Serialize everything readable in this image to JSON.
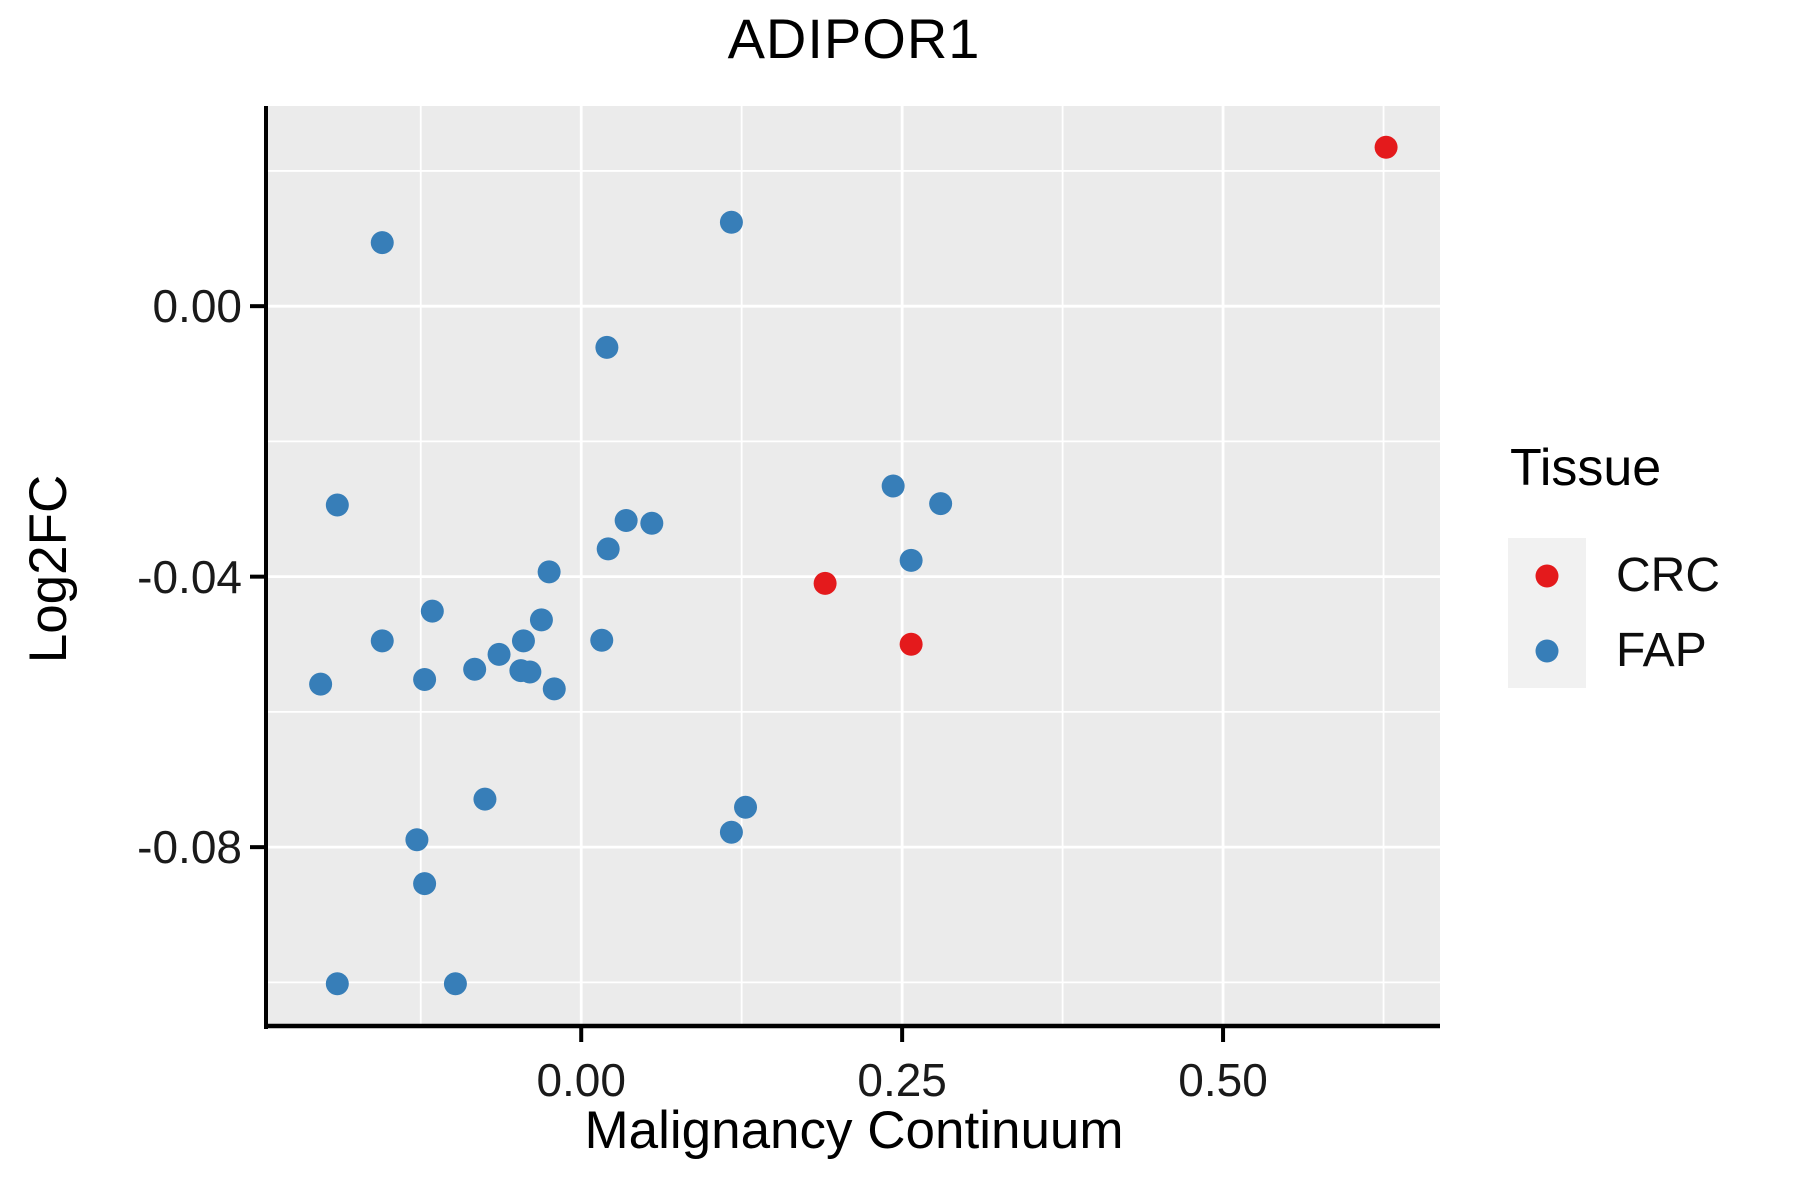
{
  "chart": {
    "title": "ADIPOR1",
    "xlabel": "Malignancy Continuum",
    "ylabel": "Log2FC",
    "legend_title": "Tissue"
  },
  "style": {
    "panel_bg": "#EBEBEB",
    "grid_color": "#FFFFFF",
    "axis_color": "#000000",
    "tick_text_color": "#1a1a1a",
    "legend_key_bg": "#F1F1F1",
    "crc_color": "#E41A1C",
    "fap_color": "#377EB8"
  },
  "chart_data": {
    "type": "scatter",
    "title": "ADIPOR1",
    "xlabel": "Malignancy Continuum",
    "ylabel": "Log2FC",
    "legend_title": "Tissue",
    "legend_position": "right",
    "grid": true,
    "x_range": [
      -0.244,
      0.669
    ],
    "y_range": [
      -0.1063,
      0.0296
    ],
    "x_major_ticks": [
      0.0,
      0.25,
      0.5
    ],
    "x_tick_labels": [
      "0.00",
      "0.25",
      "0.50"
    ],
    "x_minor_ticks": [
      -0.125,
      0.125,
      0.375,
      0.625
    ],
    "y_major_ticks": [
      0.0,
      -0.04,
      -0.08
    ],
    "y_tick_labels": [
      "0.00",
      "-0.04",
      "-0.08"
    ],
    "y_minor_ticks": [
      0.02,
      -0.02,
      -0.06,
      -0.1
    ],
    "point_radius": 11.5,
    "series": [
      {
        "name": "FAP",
        "color": "#377EB8",
        "points": [
          [
            -0.155,
            0.0094
          ],
          [
            0.117,
            0.0124
          ],
          [
            0.02,
            -0.0061
          ],
          [
            -0.19,
            -0.0294
          ],
          [
            0.035,
            -0.0317
          ],
          [
            0.055,
            -0.0321
          ],
          [
            0.021,
            -0.0359
          ],
          [
            -0.025,
            -0.0393
          ],
          [
            -0.116,
            -0.0451
          ],
          [
            -0.031,
            -0.0464
          ],
          [
            -0.155,
            -0.0495
          ],
          [
            -0.045,
            -0.0495
          ],
          [
            0.016,
            -0.0494
          ],
          [
            -0.064,
            -0.0515
          ],
          [
            -0.083,
            -0.0537
          ],
          [
            -0.047,
            -0.0539
          ],
          [
            -0.04,
            -0.0541
          ],
          [
            -0.122,
            -0.0552
          ],
          [
            -0.203,
            -0.0559
          ],
          [
            -0.021,
            -0.0566
          ],
          [
            -0.075,
            -0.0729
          ],
          [
            0.128,
            -0.0741
          ],
          [
            0.117,
            -0.0778
          ],
          [
            -0.128,
            -0.0789
          ],
          [
            -0.122,
            -0.0854
          ],
          [
            -0.19,
            -0.1002
          ],
          [
            -0.098,
            -0.1002
          ],
          [
            0.243,
            -0.0266
          ],
          [
            0.28,
            -0.0292
          ],
          [
            0.257,
            -0.0376
          ]
        ]
      },
      {
        "name": "CRC",
        "color": "#E41A1C",
        "points": [
          [
            0.19,
            -0.041
          ],
          [
            0.257,
            -0.05
          ],
          [
            0.627,
            0.0235
          ]
        ]
      }
    ]
  }
}
